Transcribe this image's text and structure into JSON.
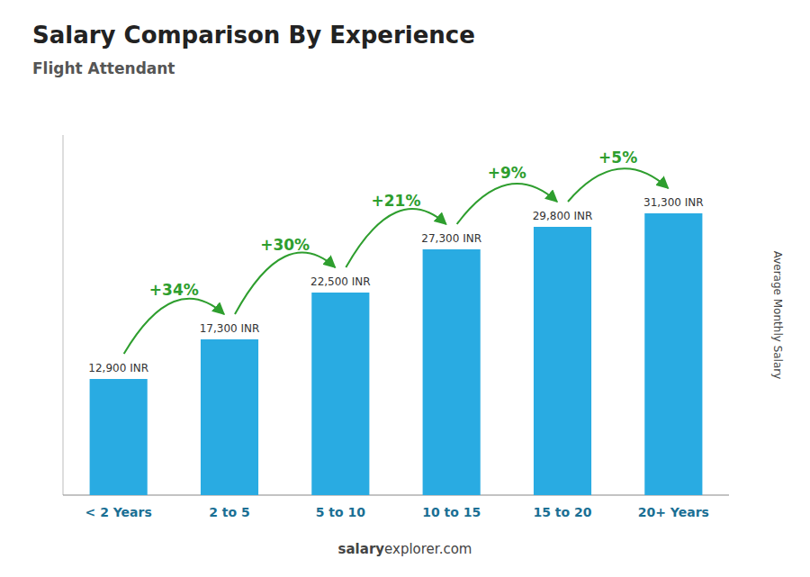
{
  "chart_data": {
    "type": "bar",
    "title": "Salary Comparison By Experience",
    "subtitle": "Flight Attendant",
    "ylabel": "Average Monthly Salary",
    "categories": [
      "< 2 Years",
      "2 to 5",
      "5 to 10",
      "10 to 15",
      "15 to 20",
      "20+ Years"
    ],
    "values": [
      12900,
      17300,
      22500,
      27300,
      29800,
      31300
    ],
    "value_labels": [
      "12,900 INR",
      "17,300 INR",
      "22,500 INR",
      "27,300 INR",
      "29,800 INR",
      "31,300 INR"
    ],
    "data_labels": true,
    "annotations": [
      "+34%",
      "+30%",
      "+21%",
      "+9%",
      "+5%"
    ],
    "footer": [
      "salary",
      "explorer.com"
    ],
    "color": "#29ABE2",
    "ylim": [
      0,
      40000
    ],
    "grid": false,
    "tick_labels": "x"
  }
}
